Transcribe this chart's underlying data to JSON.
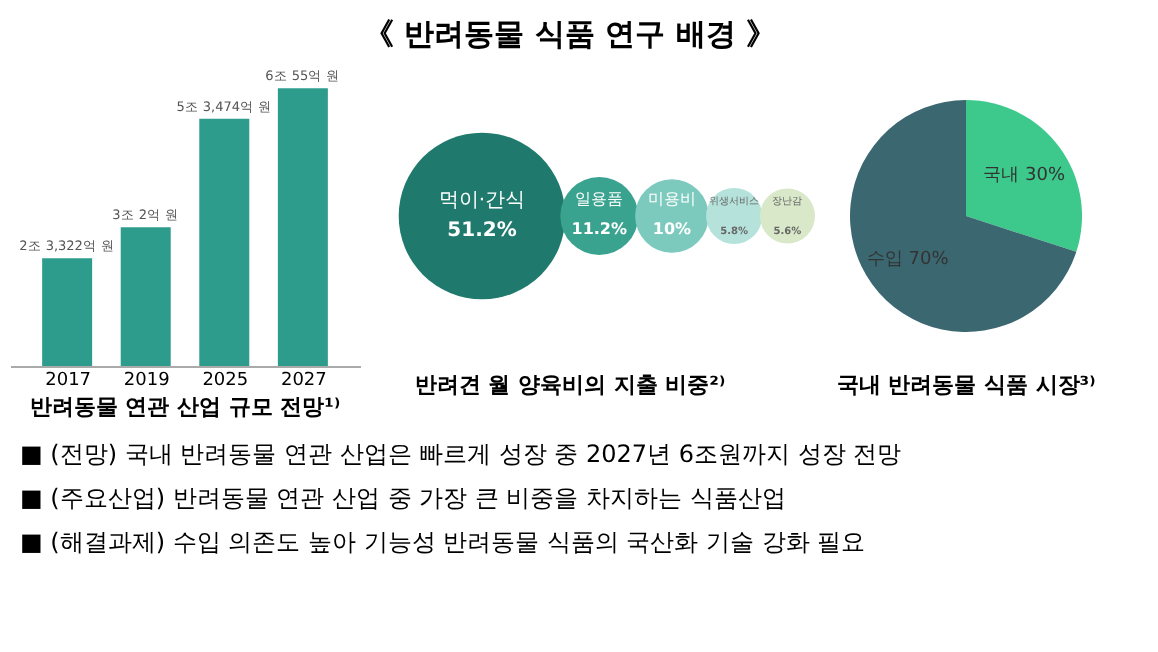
{
  "chart_data": [
    {
      "type": "other",
      "title": "《 반려동물 식품 연구 배경 》"
    },
    {
      "type": "bar",
      "title": "반려동물 연관 산업 규모 전망¹⁾",
      "categories": [
        "2017",
        "2019",
        "2025",
        "2027"
      ],
      "values": [
        2.3322,
        3.0002,
        5.3474,
        6.0055
      ],
      "value_labels": [
        "2조 3,322억 원",
        "3조 2억 원",
        "5조 3,474억 원",
        "6조 55억 원"
      ],
      "color": "#2e9c8c",
      "tick_labels": "x"
    },
    {
      "type": "other",
      "title": "반려견 월 양육비의 지출 비중²⁾",
      "categories": [
        "먹이·간식",
        "일용품",
        "미용비",
        "위생서비스",
        "장난감"
      ],
      "values": [
        51.2,
        11.2,
        10,
        5.8,
        5.6
      ],
      "value_labels": [
        "51.2%",
        "11.2%",
        "10%",
        "5.8%",
        "5.6%"
      ],
      "colors": [
        "#1f7a6d",
        "#3aa38f",
        "#7ccabd",
        "#b5e2da",
        "#d8e8c8"
      ]
    },
    {
      "type": "pie",
      "title": "국내 반려동물 식품 시장³⁾",
      "categories": [
        "국내",
        "수입"
      ],
      "values": [
        30,
        70
      ],
      "value_labels": [
        "30%",
        "70%"
      ],
      "colors": [
        "#3dc88c",
        "#3b6770"
      ]
    },
    {
      "type": "other",
      "annotations": [
        "■  (전망) 국내 반려동물 연관 산업은 빠르게 성장 중 2027년 6조원까지 성장 전망",
        "■  (주요산업) 반려동물 연관 산업 중 가장 큰 비중을 차지하는 식품산업",
        "■  (해결과제) 수입 의존도 높아 기능성 반려동물 식품의 국산화 기술 강화 필요"
      ]
    }
  ]
}
